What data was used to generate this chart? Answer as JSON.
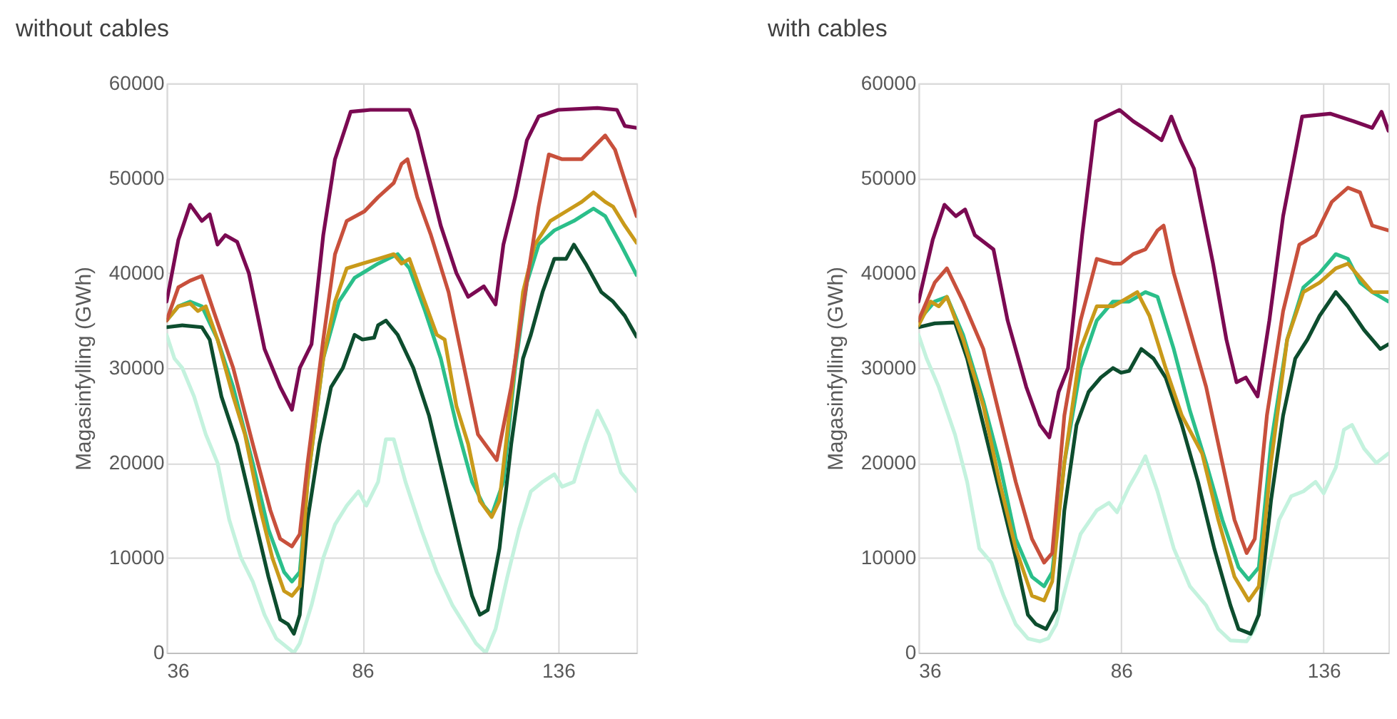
{
  "chart_data": [
    {
      "type": "line",
      "title": "without cables",
      "ylabel": "Magasinfylling (GWh)",
      "xlim": [
        36,
        156
      ],
      "xticks": [
        36,
        86,
        136
      ],
      "ylim": [
        0,
        60000
      ],
      "yticks": [
        0,
        10000,
        20000,
        30000,
        40000,
        50000,
        60000
      ],
      "grid": true,
      "legend": false,
      "marker": "none",
      "line_style": "solid",
      "series": [
        {
          "color": "#c4f2de",
          "x": [
            36,
            38,
            40,
            43,
            46,
            49,
            52,
            55,
            58,
            61,
            64,
            67,
            68.5,
            70,
            73,
            76,
            79,
            82,
            85,
            87,
            90,
            92,
            94,
            97,
            101,
            105,
            109,
            112,
            115,
            117.5,
            120,
            123,
            126,
            129,
            132,
            135,
            137,
            140,
            143,
            146,
            149,
            152,
            156
          ],
          "values": [
            33500,
            31000,
            30000,
            27000,
            23000,
            20000,
            14000,
            10000,
            7500,
            4000,
            1500,
            500,
            0,
            1000,
            5000,
            10000,
            13500,
            15500,
            17000,
            15500,
            18000,
            22500,
            22500,
            18000,
            13000,
            8500,
            5000,
            3000,
            1000,
            0,
            2500,
            8000,
            13000,
            17000,
            18000,
            18800,
            17500,
            18000,
            22000,
            25500,
            23000,
            19000,
            17000
          ]
        },
        {
          "color": "#0d4d2e",
          "x": [
            36,
            40,
            45,
            47,
            50,
            54,
            58,
            62,
            65,
            67,
            68.5,
            70,
            72,
            75,
            78,
            81,
            84,
            86,
            89,
            90,
            92,
            95,
            99,
            103,
            107,
            111,
            114,
            116,
            118,
            121,
            124,
            127,
            129,
            132,
            135,
            138,
            140,
            143,
            147,
            150,
            153,
            156
          ],
          "values": [
            34300,
            34500,
            34300,
            33000,
            27000,
            22000,
            15000,
            8000,
            3500,
            3000,
            2000,
            4000,
            14000,
            22000,
            28000,
            30000,
            33500,
            33000,
            33200,
            34500,
            35000,
            33500,
            30000,
            25000,
            18000,
            11000,
            6000,
            4000,
            4500,
            11000,
            22000,
            31000,
            33500,
            38000,
            41500,
            41500,
            43000,
            41000,
            38000,
            37000,
            35500,
            33300
          ]
        },
        {
          "color": "#2bbf8a",
          "x": [
            36,
            39,
            42,
            45,
            49,
            53,
            58,
            62,
            66,
            68,
            70,
            72,
            76,
            80,
            84,
            90,
            95,
            98,
            102,
            106,
            110,
            114,
            117,
            119,
            122,
            125,
            128,
            131,
            135,
            140,
            145,
            148,
            152,
            156
          ],
          "values": [
            35000,
            36500,
            37000,
            36500,
            33000,
            28000,
            20000,
            13000,
            8500,
            7500,
            8500,
            18000,
            31000,
            37000,
            39500,
            41000,
            42000,
            40500,
            36000,
            31000,
            24000,
            18000,
            15500,
            14500,
            18000,
            30000,
            39000,
            43000,
            44500,
            45500,
            46800,
            46000,
            43000,
            39800
          ]
        },
        {
          "color": "#c99a1a",
          "x": [
            36,
            39,
            42,
            44,
            46,
            49,
            53,
            56,
            60,
            63,
            66,
            68,
            70,
            72,
            76,
            79,
            82,
            86,
            90,
            94,
            96,
            98,
            101,
            105,
            107,
            110,
            113,
            116,
            119,
            121,
            124,
            127,
            130,
            134,
            138,
            142,
            145,
            148,
            150,
            153,
            156
          ],
          "values": [
            35000,
            36500,
            36800,
            36000,
            36500,
            33000,
            27000,
            23000,
            15000,
            10000,
            6500,
            6000,
            7000,
            18000,
            31000,
            37000,
            40500,
            41000,
            41500,
            42000,
            41000,
            41500,
            38000,
            33500,
            33000,
            26000,
            22000,
            16000,
            14300,
            16000,
            27000,
            38000,
            43000,
            45500,
            46500,
            47500,
            48500,
            47500,
            47000,
            45000,
            43200
          ]
        },
        {
          "color": "#c8503c",
          "x": [
            36,
            39,
            42,
            45,
            48,
            53,
            58,
            62.5,
            65,
            68,
            70,
            72,
            76,
            79,
            82,
            86.5,
            90,
            94,
            96,
            97.5,
            100,
            103.5,
            108,
            113,
            115.5,
            120.3,
            124,
            127.6,
            131,
            133.6,
            137,
            142,
            148,
            150.5,
            154,
            156
          ],
          "values": [
            35000,
            38500,
            39200,
            39700,
            36000,
            30000,
            22000,
            15000,
            12000,
            11200,
            12500,
            20000,
            33000,
            42000,
            45500,
            46500,
            48000,
            49500,
            51500,
            52000,
            48000,
            44000,
            38000,
            28000,
            23000,
            20300,
            28000,
            38000,
            47000,
            52500,
            52000,
            52000,
            54500,
            53000,
            48500,
            46000
          ]
        },
        {
          "color": "#7b0a52",
          "x": [
            36,
            39,
            42,
            45,
            47,
            49,
            51,
            54,
            57,
            61,
            65,
            68,
            70,
            73,
            76,
            79,
            83,
            88,
            95,
            98,
            100,
            103,
            106,
            110,
            113,
            117,
            120,
            122,
            125,
            128,
            131,
            136,
            146,
            151,
            153,
            156
          ],
          "values": [
            37000,
            43500,
            47200,
            45500,
            46200,
            43000,
            44000,
            43300,
            40000,
            32000,
            28000,
            25600,
            30000,
            32500,
            44000,
            52000,
            57000,
            57200,
            57200,
            57200,
            55000,
            50000,
            45000,
            40000,
            37500,
            38600,
            36700,
            43000,
            48000,
            54000,
            56500,
            57200,
            57400,
            57200,
            55500,
            55300
          ]
        }
      ]
    },
    {
      "type": "line",
      "title": "with cables",
      "ylabel": "Magasinfylling (GWh)",
      "xlim": [
        36,
        152
      ],
      "xticks": [
        36,
        86,
        136
      ],
      "ylim": [
        0,
        60000
      ],
      "yticks": [
        0,
        10000,
        20000,
        30000,
        40000,
        50000,
        60000
      ],
      "grid": true,
      "legend": false,
      "marker": "none",
      "line_style": "solid",
      "series": [
        {
          "color": "#c4f2de",
          "x": [
            36,
            38,
            41,
            45,
            48,
            51,
            54,
            57,
            60,
            63,
            66,
            68,
            70,
            73,
            76,
            80,
            83,
            85,
            88,
            90,
            92,
            95,
            99,
            103,
            107,
            110,
            113,
            117,
            119,
            122,
            125,
            128,
            131,
            134,
            136,
            139,
            141,
            143,
            146,
            149,
            152
          ],
          "values": [
            33500,
            31000,
            28000,
            23000,
            18000,
            11000,
            9500,
            6000,
            3000,
            1500,
            1200,
            1500,
            3000,
            8000,
            12500,
            15000,
            15800,
            14800,
            17500,
            19000,
            20700,
            17000,
            11000,
            7000,
            5000,
            2500,
            1300,
            1200,
            2500,
            8000,
            14000,
            16500,
            17000,
            18000,
            16800,
            19500,
            23500,
            24000,
            21500,
            20000,
            21000
          ]
        },
        {
          "color": "#0d4d2e",
          "x": [
            36,
            40,
            45,
            48,
            52,
            56,
            60,
            63,
            65,
            67.5,
            70,
            72,
            75,
            78,
            81,
            84,
            86,
            88,
            91,
            94,
            97,
            101,
            105,
            109,
            113,
            115,
            118,
            120,
            123,
            126,
            129,
            132,
            135,
            139,
            142,
            146,
            150,
            152
          ],
          "values": [
            34300,
            34700,
            34800,
            31000,
            24000,
            17000,
            10000,
            4000,
            3000,
            2500,
            4500,
            15000,
            24000,
            27500,
            29000,
            30000,
            29500,
            29700,
            32000,
            31000,
            29000,
            24000,
            18000,
            11000,
            5000,
            2500,
            2000,
            4000,
            16000,
            25000,
            31000,
            33000,
            35500,
            38000,
            36500,
            34000,
            32000,
            32500
          ]
        },
        {
          "color": "#2bbf8a",
          "x": [
            36,
            40,
            43,
            47,
            52,
            56,
            60,
            64,
            67,
            69,
            72,
            76,
            80,
            84,
            88,
            92,
            95,
            99,
            103,
            107,
            111,
            115,
            117.5,
            120,
            123,
            127,
            131,
            135,
            139,
            142,
            145,
            148,
            152
          ],
          "values": [
            35000,
            37000,
            37500,
            33500,
            26500,
            20000,
            12000,
            8000,
            7000,
            8500,
            20000,
            30000,
            35000,
            37000,
            37000,
            38000,
            37500,
            32000,
            25500,
            20000,
            14000,
            9000,
            7700,
            9000,
            22000,
            33000,
            38500,
            40000,
            42000,
            41500,
            39000,
            38000,
            37000
          ]
        },
        {
          "color": "#c99a1a",
          "x": [
            36,
            39,
            41,
            43,
            47,
            52,
            56,
            60,
            64,
            67,
            69,
            72,
            76,
            80,
            84,
            88,
            90,
            93,
            97,
            101,
            106,
            110,
            114,
            117.5,
            120,
            123,
            127,
            131,
            135,
            139,
            142,
            145,
            148,
            152
          ],
          "values": [
            34500,
            37000,
            36500,
            37500,
            33000,
            26000,
            18000,
            11000,
            6000,
            5500,
            7500,
            20000,
            32000,
            36500,
            36500,
            37500,
            38000,
            35500,
            30000,
            25000,
            21000,
            14000,
            8000,
            5500,
            7000,
            20000,
            33000,
            38000,
            39000,
            40500,
            41000,
            39500,
            38000,
            38000
          ]
        },
        {
          "color": "#c8503c",
          "x": [
            36,
            40,
            43,
            47,
            52,
            56,
            60,
            64,
            67,
            69,
            72,
            76,
            80,
            84,
            86,
            89,
            92,
            95,
            96.5,
            99,
            103,
            107,
            111,
            114,
            117,
            119,
            122,
            126,
            130,
            134,
            138,
            142,
            145,
            148,
            152
          ],
          "values": [
            35000,
            39000,
            40500,
            37000,
            32000,
            25000,
            18000,
            12000,
            9500,
            10500,
            25000,
            35000,
            41500,
            41000,
            41000,
            42000,
            42500,
            44500,
            45000,
            40000,
            34000,
            28000,
            20000,
            14000,
            10500,
            12000,
            25000,
            36000,
            43000,
            44000,
            47500,
            49000,
            48500,
            45000,
            44500
          ]
        },
        {
          "color": "#7b0a52",
          "x": [
            36,
            39.5,
            42.4,
            45.2,
            47.5,
            49.9,
            54.5,
            58,
            62.6,
            66,
            68.3,
            70.6,
            72.9,
            76.4,
            79.8,
            85.6,
            89,
            92.6,
            96,
            98.4,
            100.7,
            104,
            108.7,
            112,
            114.5,
            116.8,
            119.7,
            122.6,
            126,
            130.7,
            137.6,
            143.4,
            148,
            150.3,
            152
          ],
          "values": [
            37000,
            43500,
            47200,
            46000,
            46700,
            44000,
            42500,
            35000,
            28000,
            24000,
            22700,
            27500,
            30000,
            44000,
            56000,
            57200,
            56000,
            55000,
            54000,
            56500,
            54000,
            51000,
            41000,
            33000,
            28500,
            29000,
            27000,
            35000,
            46000,
            56500,
            56800,
            56000,
            55300,
            57000,
            55000
          ]
        }
      ]
    }
  ]
}
